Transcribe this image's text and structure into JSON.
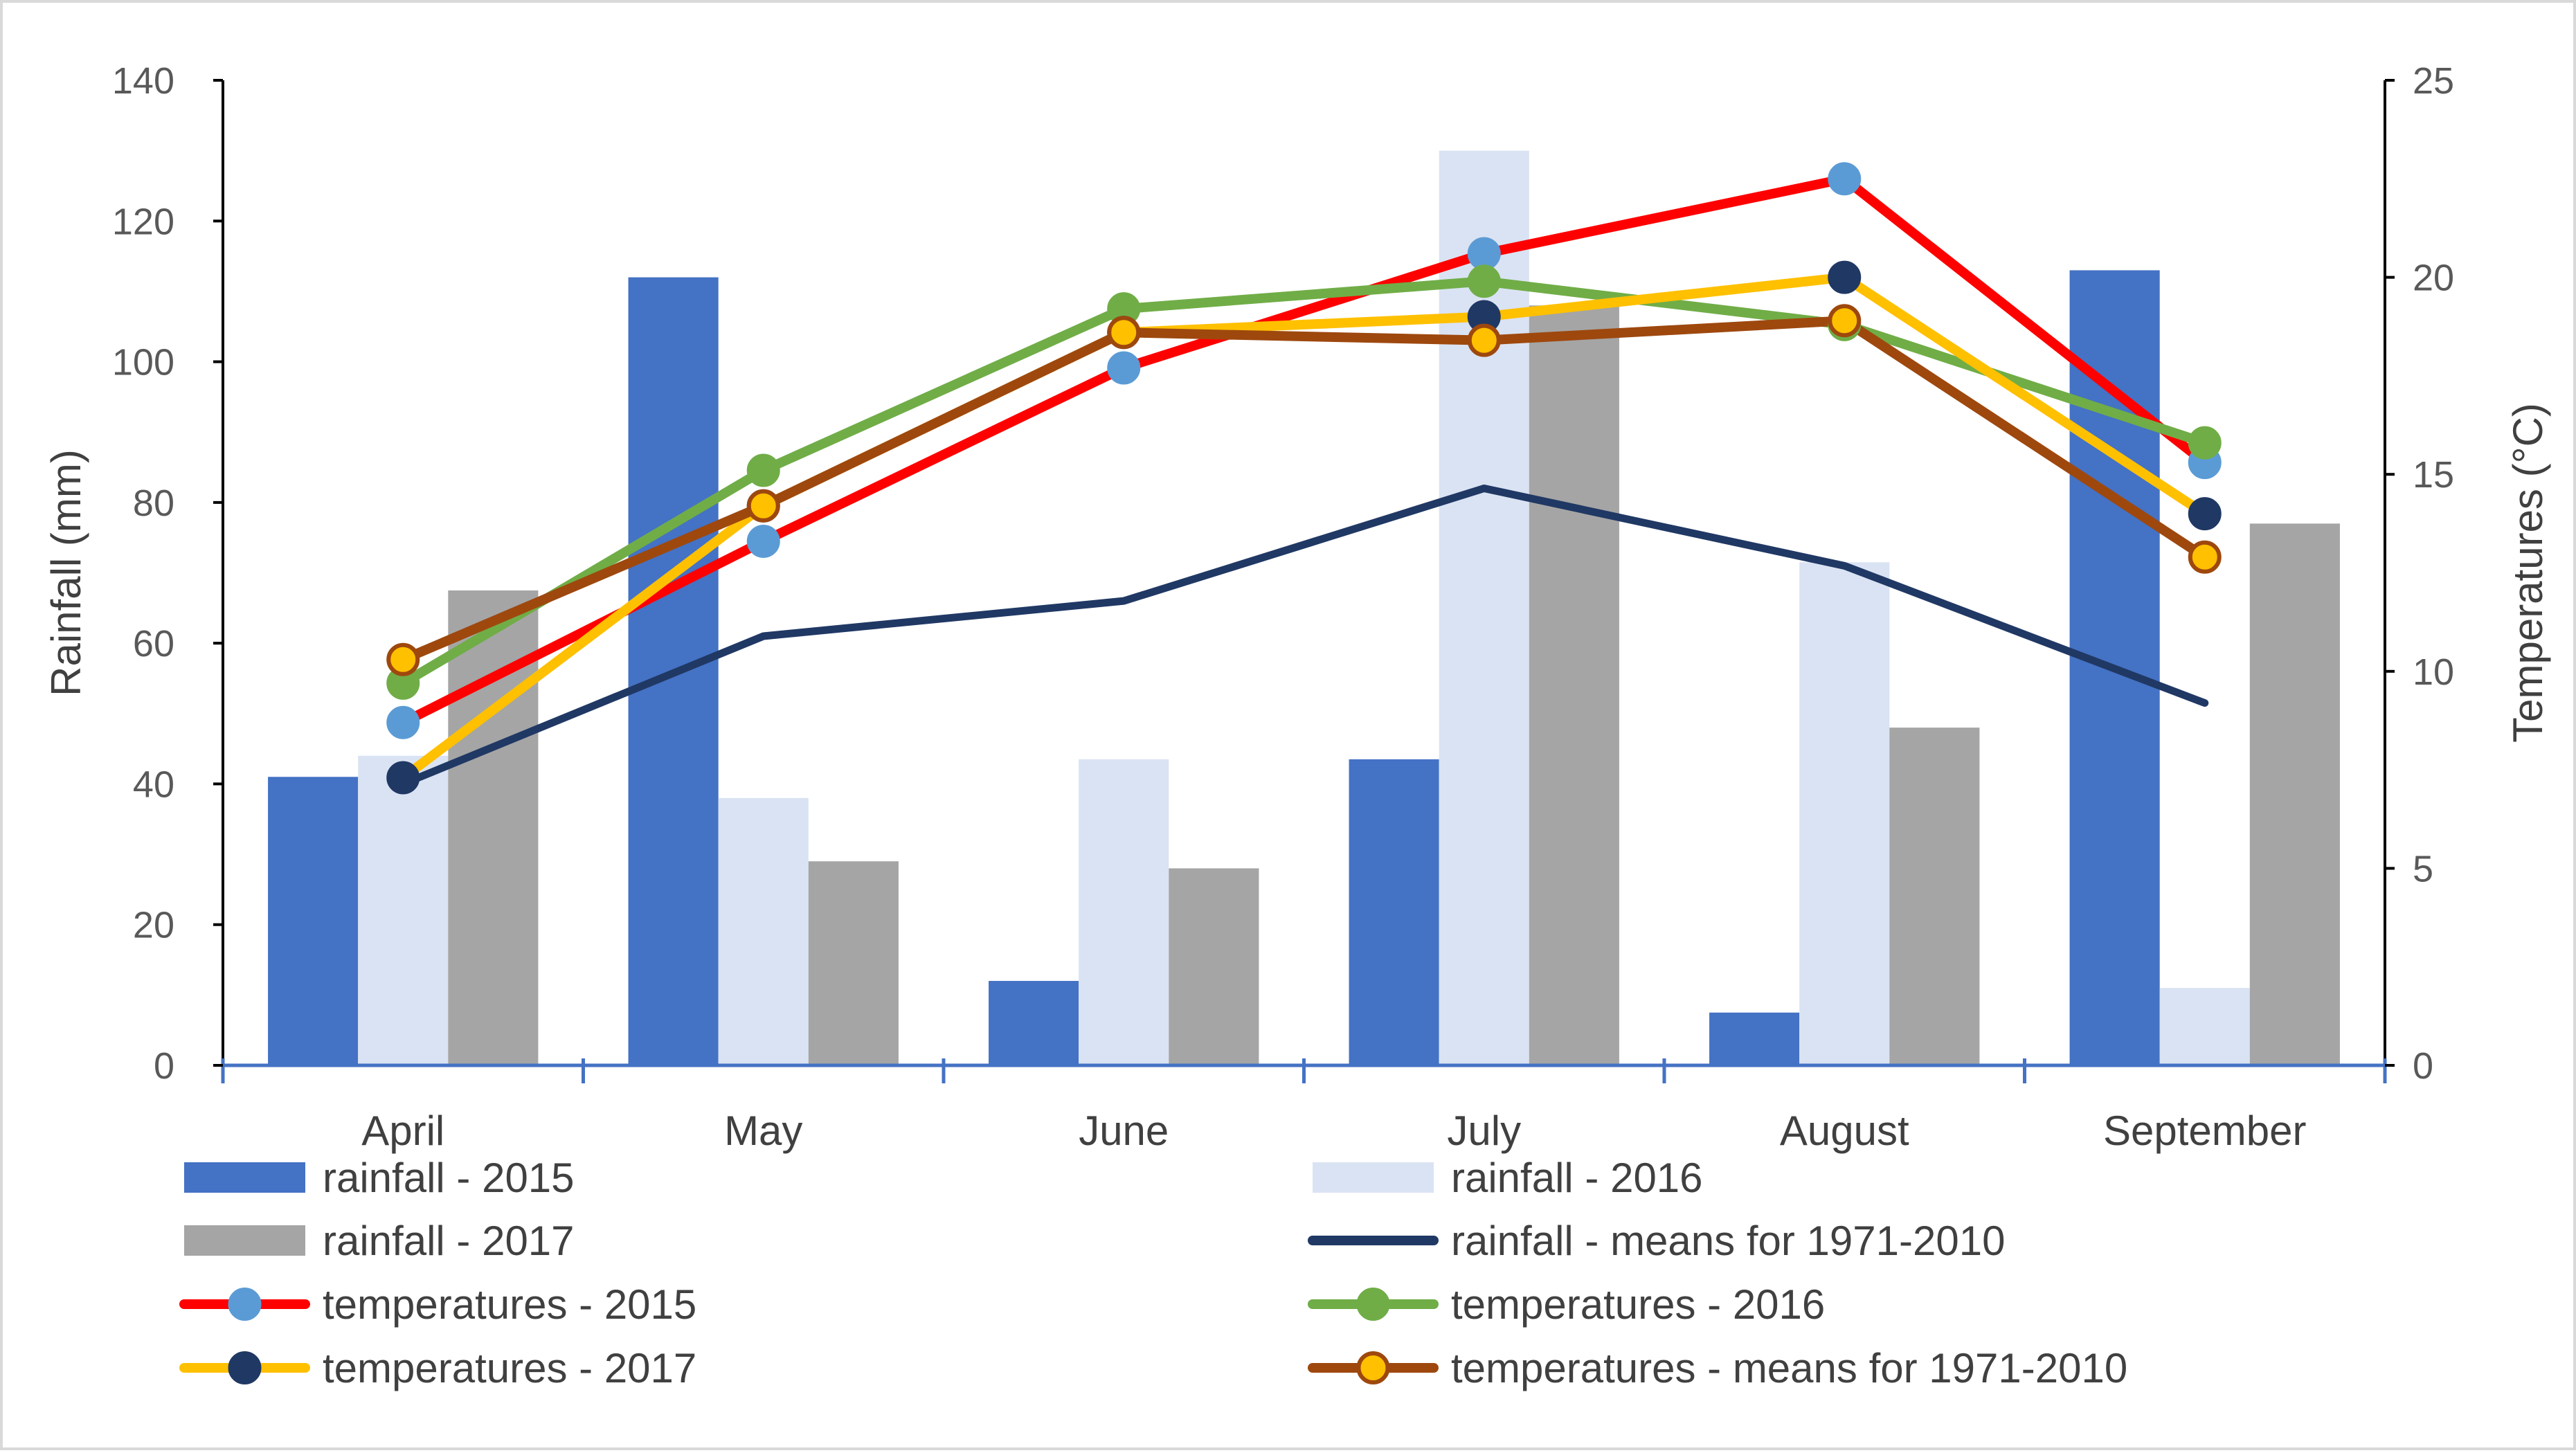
{
  "chart_data": {
    "type": "bar+line",
    "categories": [
      "April",
      "May",
      "June",
      "July",
      "August",
      "September"
    ],
    "y_left": {
      "label": "Rainfall (mm)",
      "range": [
        0,
        140
      ],
      "ticks": [
        0,
        20,
        40,
        60,
        80,
        100,
        120,
        140
      ]
    },
    "y_right": {
      "label": "Temperatures (°C)",
      "range": [
        0,
        25
      ],
      "ticks": [
        0,
        5,
        10,
        15,
        20,
        25
      ]
    },
    "bar_series": [
      {
        "name": "rainfall - 2015",
        "color": "#4472C4",
        "values": [
          41,
          112,
          12,
          43.5,
          7.5,
          113
        ]
      },
      {
        "name": "rainfall - 2016",
        "color": "#DAE3F3",
        "values": [
          44,
          38,
          43.5,
          130,
          71.5,
          11
        ]
      },
      {
        "name": "rainfall - 2017",
        "color": "#A5A5A5",
        "values": [
          67.5,
          29,
          28,
          108,
          48,
          77
        ]
      }
    ],
    "line_series": [
      {
        "name": "rainfall - means for 1971-2010",
        "axis": "left",
        "color": "#203864",
        "marker": null,
        "values": [
          40,
          61,
          66,
          82,
          71,
          51.5
        ]
      },
      {
        "name": "temperatures - 2015",
        "axis": "right",
        "color": "#FF0000",
        "marker_color": "#5B9BD5",
        "marker_edge": "#5B9BD5",
        "values": [
          8.7,
          13.3,
          17.7,
          20.6,
          22.5,
          15.3
        ]
      },
      {
        "name": "temperatures - 2016",
        "axis": "right",
        "color": "#70AD47",
        "marker_color": "#70AD47",
        "marker_edge": "#70AD47",
        "values": [
          9.7,
          15.1,
          19.2,
          19.9,
          18.8,
          15.8
        ]
      },
      {
        "name": "temperatures - 2017",
        "axis": "right",
        "color": "#FFC000",
        "marker_color": "#203864",
        "marker_edge": "#203864",
        "values": [
          7.3,
          14.2,
          18.6,
          19.0,
          20.0,
          14.0
        ]
      },
      {
        "name": "temperatures - means for 1971-2010",
        "axis": "right",
        "color": "#9E480E",
        "marker_color": "#FFC000",
        "marker_edge": "#9E480E",
        "values": [
          10.3,
          14.2,
          18.6,
          18.4,
          18.9,
          12.9
        ]
      }
    ],
    "legend": {
      "placement": "bottom",
      "entries": [
        "rainfall - 2015",
        "rainfall - 2016",
        "rainfall - 2017",
        "rainfall - means for 1971-2010",
        "temperatures - 2015",
        "temperatures - 2016",
        "temperatures - 2017",
        "temperatures - means for 1971-2010"
      ]
    }
  }
}
